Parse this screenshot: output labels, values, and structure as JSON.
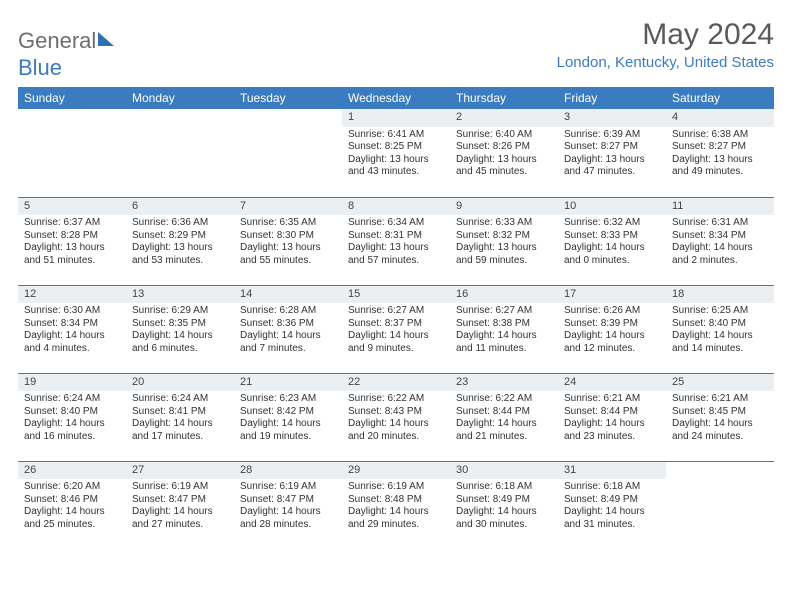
{
  "brand": {
    "part1": "General",
    "part2": "Blue"
  },
  "title": "May 2024",
  "location": "London, Kentucky, United States",
  "columns": [
    "Sunday",
    "Monday",
    "Tuesday",
    "Wednesday",
    "Thursday",
    "Friday",
    "Saturday"
  ],
  "colors": {
    "header_bg": "#3b7bbf",
    "header_text": "#ffffff",
    "daynum_bg": "#eceff1",
    "row_border": "#3b7bbf",
    "title_color": "#5a5a5a",
    "location_color": "#3b7bbf",
    "body_text": "#333333",
    "logo_gray": "#6e6e6e"
  },
  "weeks": [
    [
      null,
      null,
      null,
      {
        "n": "1",
        "sr": "6:41 AM",
        "ss": "8:25 PM",
        "dl": "13 hours and 43 minutes."
      },
      {
        "n": "2",
        "sr": "6:40 AM",
        "ss": "8:26 PM",
        "dl": "13 hours and 45 minutes."
      },
      {
        "n": "3",
        "sr": "6:39 AM",
        "ss": "8:27 PM",
        "dl": "13 hours and 47 minutes."
      },
      {
        "n": "4",
        "sr": "6:38 AM",
        "ss": "8:27 PM",
        "dl": "13 hours and 49 minutes."
      }
    ],
    [
      {
        "n": "5",
        "sr": "6:37 AM",
        "ss": "8:28 PM",
        "dl": "13 hours and 51 minutes."
      },
      {
        "n": "6",
        "sr": "6:36 AM",
        "ss": "8:29 PM",
        "dl": "13 hours and 53 minutes."
      },
      {
        "n": "7",
        "sr": "6:35 AM",
        "ss": "8:30 PM",
        "dl": "13 hours and 55 minutes."
      },
      {
        "n": "8",
        "sr": "6:34 AM",
        "ss": "8:31 PM",
        "dl": "13 hours and 57 minutes."
      },
      {
        "n": "9",
        "sr": "6:33 AM",
        "ss": "8:32 PM",
        "dl": "13 hours and 59 minutes."
      },
      {
        "n": "10",
        "sr": "6:32 AM",
        "ss": "8:33 PM",
        "dl": "14 hours and 0 minutes."
      },
      {
        "n": "11",
        "sr": "6:31 AM",
        "ss": "8:34 PM",
        "dl": "14 hours and 2 minutes."
      }
    ],
    [
      {
        "n": "12",
        "sr": "6:30 AM",
        "ss": "8:34 PM",
        "dl": "14 hours and 4 minutes."
      },
      {
        "n": "13",
        "sr": "6:29 AM",
        "ss": "8:35 PM",
        "dl": "14 hours and 6 minutes."
      },
      {
        "n": "14",
        "sr": "6:28 AM",
        "ss": "8:36 PM",
        "dl": "14 hours and 7 minutes."
      },
      {
        "n": "15",
        "sr": "6:27 AM",
        "ss": "8:37 PM",
        "dl": "14 hours and 9 minutes."
      },
      {
        "n": "16",
        "sr": "6:27 AM",
        "ss": "8:38 PM",
        "dl": "14 hours and 11 minutes."
      },
      {
        "n": "17",
        "sr": "6:26 AM",
        "ss": "8:39 PM",
        "dl": "14 hours and 12 minutes."
      },
      {
        "n": "18",
        "sr": "6:25 AM",
        "ss": "8:40 PM",
        "dl": "14 hours and 14 minutes."
      }
    ],
    [
      {
        "n": "19",
        "sr": "6:24 AM",
        "ss": "8:40 PM",
        "dl": "14 hours and 16 minutes."
      },
      {
        "n": "20",
        "sr": "6:24 AM",
        "ss": "8:41 PM",
        "dl": "14 hours and 17 minutes."
      },
      {
        "n": "21",
        "sr": "6:23 AM",
        "ss": "8:42 PM",
        "dl": "14 hours and 19 minutes."
      },
      {
        "n": "22",
        "sr": "6:22 AM",
        "ss": "8:43 PM",
        "dl": "14 hours and 20 minutes."
      },
      {
        "n": "23",
        "sr": "6:22 AM",
        "ss": "8:44 PM",
        "dl": "14 hours and 21 minutes."
      },
      {
        "n": "24",
        "sr": "6:21 AM",
        "ss": "8:44 PM",
        "dl": "14 hours and 23 minutes."
      },
      {
        "n": "25",
        "sr": "6:21 AM",
        "ss": "8:45 PM",
        "dl": "14 hours and 24 minutes."
      }
    ],
    [
      {
        "n": "26",
        "sr": "6:20 AM",
        "ss": "8:46 PM",
        "dl": "14 hours and 25 minutes."
      },
      {
        "n": "27",
        "sr": "6:19 AM",
        "ss": "8:47 PM",
        "dl": "14 hours and 27 minutes."
      },
      {
        "n": "28",
        "sr": "6:19 AM",
        "ss": "8:47 PM",
        "dl": "14 hours and 28 minutes."
      },
      {
        "n": "29",
        "sr": "6:19 AM",
        "ss": "8:48 PM",
        "dl": "14 hours and 29 minutes."
      },
      {
        "n": "30",
        "sr": "6:18 AM",
        "ss": "8:49 PM",
        "dl": "14 hours and 30 minutes."
      },
      {
        "n": "31",
        "sr": "6:18 AM",
        "ss": "8:49 PM",
        "dl": "14 hours and 31 minutes."
      },
      null
    ]
  ],
  "labels": {
    "sunrise": "Sunrise:",
    "sunset": "Sunset:",
    "daylight": "Daylight:"
  }
}
